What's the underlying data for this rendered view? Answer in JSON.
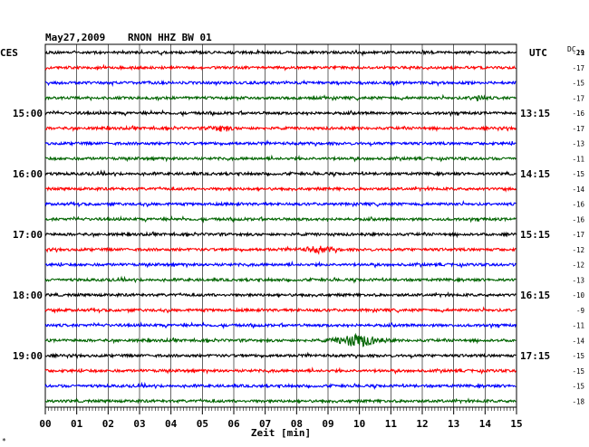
{
  "header": {
    "date": "May27,2009",
    "station": "RNON HHZ BW 01",
    "left_tz": "CES",
    "right_tz": "UTC",
    "offset_label": "DC",
    "offset_sub": "21"
  },
  "footer": {
    "xlabel": "Zeit [min]",
    "corner_mark": "*"
  },
  "chart_data": {
    "type": "line",
    "title": "May27,2009   RNON HHZ BW 01",
    "xlabel": "Zeit [min]",
    "ylabel": "",
    "x_ticks": [
      "00",
      "01",
      "02",
      "03",
      "04",
      "05",
      "06",
      "07",
      "08",
      "09",
      "10",
      "11",
      "12",
      "13",
      "14",
      "15"
    ],
    "xlim": [
      0,
      15
    ],
    "grid": true,
    "trace_colors": [
      "#000000",
      "#ff0000",
      "#0000ff",
      "#006400"
    ],
    "left_time_labels": [
      {
        "row": 4,
        "text": "15:00"
      },
      {
        "row": 8,
        "text": "16:00"
      },
      {
        "row": 12,
        "text": "17:00"
      },
      {
        "row": 16,
        "text": "18:00"
      },
      {
        "row": 20,
        "text": "19:00"
      }
    ],
    "right_time_labels": [
      {
        "row": 4,
        "text": "13:15"
      },
      {
        "row": 8,
        "text": "14:15"
      },
      {
        "row": 12,
        "text": "15:15"
      },
      {
        "row": 16,
        "text": "16:15"
      },
      {
        "row": 20,
        "text": "17:15"
      }
    ],
    "rows": [
      {
        "offset": "-19"
      },
      {
        "offset": "-17"
      },
      {
        "offset": "-15"
      },
      {
        "offset": "-17"
      },
      {
        "offset": "-16"
      },
      {
        "offset": "-17"
      },
      {
        "offset": "-13"
      },
      {
        "offset": "-11"
      },
      {
        "offset": "-15"
      },
      {
        "offset": "-14"
      },
      {
        "offset": "-16"
      },
      {
        "offset": "-16"
      },
      {
        "offset": "-17"
      },
      {
        "offset": "-12"
      },
      {
        "offset": "-12"
      },
      {
        "offset": "-13"
      },
      {
        "offset": "-10"
      },
      {
        "offset": "-9"
      },
      {
        "offset": "-11"
      },
      {
        "offset": "-14"
      },
      {
        "offset": "-15"
      },
      {
        "offset": "-15"
      },
      {
        "offset": "-15"
      },
      {
        "offset": "-18"
      }
    ],
    "events": [
      {
        "row": 5,
        "start_min": 4.8,
        "end_min": 6.2,
        "amplitude": 1.7
      },
      {
        "row": 13,
        "start_min": 7.6,
        "end_min": 9.6,
        "amplitude": 2.0
      },
      {
        "row": 19,
        "start_min": 8.4,
        "end_min": 11.2,
        "amplitude": 4.5
      },
      {
        "row": 3,
        "start_min": 13.2,
        "end_min": 14.2,
        "amplitude": 1.6
      }
    ]
  }
}
